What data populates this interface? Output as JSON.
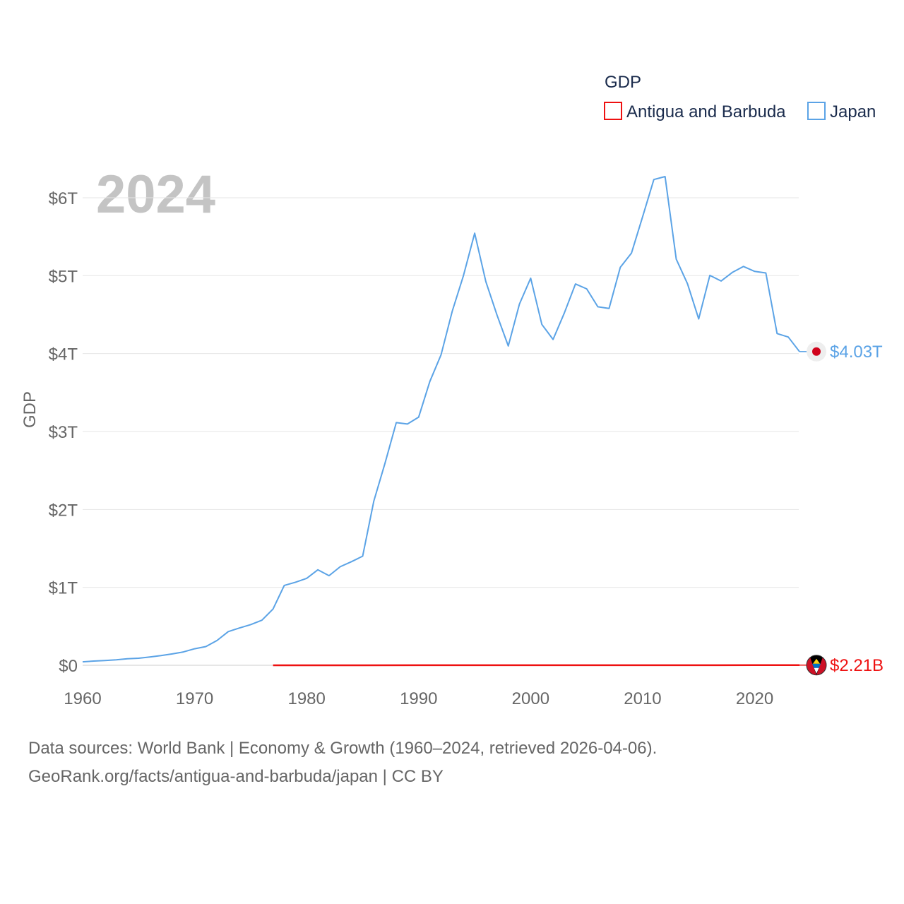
{
  "chart_data": {
    "type": "line",
    "current_year": "2024",
    "legend_title": "GDP",
    "ylabel": "GDP",
    "xlim": [
      1960,
      2024
    ],
    "ylim": [
      0,
      6000
    ],
    "y_unit": "billions USD",
    "y_ticks": [
      {
        "value": 0,
        "label": "$0"
      },
      {
        "value": 1000,
        "label": "$1T"
      },
      {
        "value": 2000,
        "label": "$2T"
      },
      {
        "value": 3000,
        "label": "$3T"
      },
      {
        "value": 4000,
        "label": "$4T"
      },
      {
        "value": 5000,
        "label": "$5T"
      },
      {
        "value": 6000,
        "label": "$6T"
      }
    ],
    "x_ticks": [
      {
        "value": 1960,
        "label": "1960"
      },
      {
        "value": 1970,
        "label": "1970"
      },
      {
        "value": 1980,
        "label": "1980"
      },
      {
        "value": 1990,
        "label": "1990"
      },
      {
        "value": 2000,
        "label": "2000"
      },
      {
        "value": 2010,
        "label": "2010"
      },
      {
        "value": 2020,
        "label": "2020"
      }
    ],
    "series": [
      {
        "name": "Antigua and Barbuda",
        "color": "#ee1111",
        "end_label": "$2.21B",
        "marker_icon": "antigua-and-barbuda-flag-icon",
        "x": [
          1977,
          1980,
          1985,
          1990,
          1995,
          2000,
          2005,
          2010,
          2015,
          2020,
          2024
        ],
        "values": [
          0.08,
          0.12,
          0.2,
          0.46,
          0.6,
          0.83,
          1.06,
          1.15,
          1.34,
          1.41,
          2.21
        ]
      },
      {
        "name": "Japan",
        "color": "#5ba3e6",
        "end_label": "$4.03T",
        "marker_icon": "japan-flag-icon",
        "x": [
          1960,
          1961,
          1962,
          1963,
          1964,
          1965,
          1966,
          1967,
          1968,
          1969,
          1970,
          1971,
          1972,
          1973,
          1974,
          1975,
          1976,
          1977,
          1978,
          1979,
          1980,
          1981,
          1982,
          1983,
          1984,
          1985,
          1986,
          1987,
          1988,
          1989,
          1990,
          1991,
          1992,
          1993,
          1994,
          1995,
          1996,
          1997,
          1998,
          1999,
          2000,
          2001,
          2002,
          2003,
          2004,
          2005,
          2006,
          2007,
          2008,
          2009,
          2010,
          2011,
          2012,
          2013,
          2014,
          2015,
          2016,
          2017,
          2018,
          2019,
          2020,
          2021,
          2022,
          2023,
          2024
        ],
        "values": [
          44,
          54,
          62,
          70,
          83,
          91,
          106,
          124,
          146,
          171,
          212,
          240,
          318,
          432,
          479,
          522,
          578,
          722,
          1025,
          1066,
          1116,
          1225,
          1150,
          1265,
          1330,
          1400,
          2107,
          2595,
          3114,
          3096,
          3185,
          3642,
          3984,
          4545,
          5000,
          5545,
          4924,
          4493,
          4098,
          4636,
          4968,
          4375,
          4182,
          4520,
          4893,
          4831,
          4601,
          4580,
          5107,
          5289,
          5759,
          6234,
          6272,
          5212,
          4897,
          4445,
          5004,
          4931,
          5041,
          5118,
          5055,
          5035,
          4257,
          4213,
          4026
        ]
      }
    ]
  },
  "source": {
    "line1": "Data sources: World Bank | Economy & Growth (1960–2024, retrieved 2026-04-06).",
    "line2": "GeoRank.org/facts/antigua-and-barbuda/japan | CC BY"
  }
}
